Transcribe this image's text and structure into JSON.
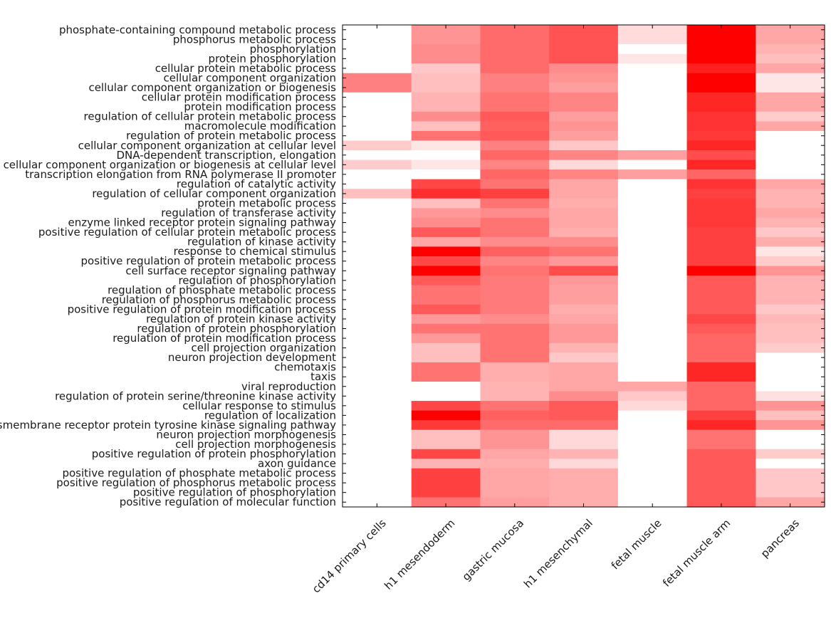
{
  "chart_data": {
    "type": "heatmap",
    "title": "",
    "xlabel": "",
    "ylabel": "",
    "color_scale": {
      "low": "#ffffff",
      "high": "#ff0000"
    },
    "grid": false,
    "columns": [
      "cd14 primary cells",
      "h1 mesendoderm",
      "gastric mucosa",
      "h1 mesenchymal",
      "fetal muscle",
      "fetal muscle arm",
      "pancreas"
    ],
    "rows": [
      "phosphate-containing compound metabolic process",
      "phosphorus metabolic process",
      "phosphorylation",
      "protein phosphorylation",
      "cellular protein metabolic process",
      "cellular component organization",
      "cellular component organization or biogenesis",
      "cellular protein modification process",
      "protein modification process",
      "regulation of cellular protein metabolic process",
      "macromolecule modification",
      "regulation of protein metabolic process",
      "cellular component organization at cellular level",
      "DNA-dependent transcription, elongation",
      "cellular component organization or biogenesis at cellular level",
      "transcription elongation from RNA polymerase II promoter",
      "regulation of catalytic activity",
      "regulation of cellular component organization",
      "protein metabolic process",
      "regulation of transferase activity",
      "enzyme linked receptor protein signaling pathway",
      "positive regulation of cellular protein metabolic process",
      "regulation of kinase activity",
      "response to chemical stimulus",
      "positive regulation of protein metabolic process",
      "cell surface receptor signaling pathway",
      "regulation of phosphorylation",
      "regulation of phosphate metabolic process",
      "regulation of phosphorus metabolic process",
      "positive regulation of protein modification process",
      "regulation of protein kinase activity",
      "regulation of protein phosphorylation",
      "regulation of protein modification process",
      "cell projection organization",
      "neuron projection development",
      "chemotaxis",
      "taxis",
      "viral reproduction",
      "regulation of protein serine/threonine kinase activity",
      "cellular response to stimulus",
      "regulation of localization",
      "transmembrane receptor protein tyrosine kinase signaling pathway",
      "neuron projection morphogenesis",
      "cell projection morphogenesis",
      "positive regulation of protein phosphorylation",
      "axon guidance",
      "positive regulation of phosphate metabolic process",
      "positive regulation of phosphorus metabolic process",
      "positive regulation of phosphorylation",
      "positive regulation of molecular function"
    ],
    "values": [
      [
        0,
        0.42,
        0.58,
        0.68,
        0.14,
        1.0,
        0.35
      ],
      [
        0,
        0.42,
        0.58,
        0.68,
        0.14,
        1.0,
        0.35
      ],
      [
        0,
        0.45,
        0.58,
        0.68,
        0,
        1.0,
        0.3
      ],
      [
        0,
        0.45,
        0.58,
        0.68,
        0.1,
        1.0,
        0.25
      ],
      [
        0,
        0.22,
        0.58,
        0.45,
        0,
        0.88,
        0.35
      ],
      [
        0.5,
        0.25,
        0.5,
        0.42,
        0,
        1.0,
        0.1
      ],
      [
        0.5,
        0.25,
        0.5,
        0.38,
        0,
        1.0,
        0.1
      ],
      [
        0,
        0.3,
        0.55,
        0.48,
        0,
        0.85,
        0.35
      ],
      [
        0,
        0.3,
        0.55,
        0.48,
        0,
        0.85,
        0.35
      ],
      [
        0,
        0.45,
        0.65,
        0.38,
        0,
        0.8,
        0.2
      ],
      [
        0,
        0.25,
        0.62,
        0.42,
        0,
        0.8,
        0.35
      ],
      [
        0,
        0.55,
        0.65,
        0.38,
        0,
        0.78,
        0
      ],
      [
        0.2,
        0.1,
        0.5,
        0.22,
        0,
        0.85,
        0
      ],
      [
        0,
        0,
        0.6,
        0.48,
        0.38,
        0.7,
        0
      ],
      [
        0.2,
        0.1,
        0.48,
        0.15,
        0,
        0.85,
        0
      ],
      [
        0,
        0,
        0.6,
        0.48,
        0.38,
        0.6,
        0
      ],
      [
        0,
        0.72,
        0.55,
        0.35,
        0,
        0.8,
        0.35
      ],
      [
        0.25,
        0.82,
        0.75,
        0.35,
        0,
        0.75,
        0.3
      ],
      [
        0,
        0.25,
        0.55,
        0.32,
        0,
        0.78,
        0.3
      ],
      [
        0,
        0.4,
        0.45,
        0.35,
        0,
        0.78,
        0.35
      ],
      [
        0,
        0.45,
        0.55,
        0.35,
        0,
        0.78,
        0.3
      ],
      [
        0,
        0.65,
        0.55,
        0.32,
        0,
        0.75,
        0.22
      ],
      [
        0,
        0.35,
        0.45,
        0.45,
        0,
        0.75,
        0.32
      ],
      [
        0,
        1.0,
        0.62,
        0.55,
        0,
        0.75,
        0.1
      ],
      [
        0,
        0.72,
        0.48,
        0.4,
        0,
        0.75,
        0.2
      ],
      [
        0,
        1.0,
        0.55,
        0.7,
        0,
        1.0,
        0.42
      ],
      [
        0,
        0.65,
        0.52,
        0.4,
        0,
        0.65,
        0.3
      ],
      [
        0,
        0.55,
        0.52,
        0.38,
        0,
        0.65,
        0.3
      ],
      [
        0,
        0.55,
        0.52,
        0.38,
        0,
        0.65,
        0.3
      ],
      [
        0,
        0.65,
        0.52,
        0.32,
        0,
        0.65,
        0.22
      ],
      [
        0,
        0.4,
        0.45,
        0.35,
        0,
        0.72,
        0.28
      ],
      [
        0,
        0.55,
        0.55,
        0.4,
        0,
        0.65,
        0.25
      ],
      [
        0,
        0.4,
        0.55,
        0.4,
        0,
        0.6,
        0.25
      ],
      [
        0,
        0.25,
        0.55,
        0.3,
        0,
        0.6,
        0.2
      ],
      [
        0,
        0.25,
        0.55,
        0.22,
        0,
        0.6,
        0
      ],
      [
        0,
        0.55,
        0.32,
        0.35,
        0,
        0.85,
        0
      ],
      [
        0,
        0.55,
        0.32,
        0.35,
        0,
        0.85,
        0
      ],
      [
        0,
        0,
        0.3,
        0.35,
        0.35,
        0.6,
        0
      ],
      [
        0,
        0,
        0.3,
        0.45,
        0.22,
        0.6,
        0.12
      ],
      [
        0,
        0.72,
        0.55,
        0.65,
        0.15,
        0.6,
        0.42
      ],
      [
        0,
        1.0,
        0.62,
        0.65,
        0,
        0.75,
        0.25
      ],
      [
        0,
        0.78,
        0.58,
        0.58,
        0,
        0.85,
        0.42
      ],
      [
        0,
        0.25,
        0.42,
        0.15,
        0,
        0.55,
        0
      ],
      [
        0,
        0.25,
        0.42,
        0.15,
        0,
        0.55,
        0
      ],
      [
        0,
        0.72,
        0.35,
        0.3,
        0,
        0.65,
        0.2
      ],
      [
        0,
        0.3,
        0.32,
        0.15,
        0,
        0.65,
        0
      ],
      [
        0,
        0.75,
        0.35,
        0.32,
        0,
        0.65,
        0.22
      ],
      [
        0,
        0.75,
        0.35,
        0.32,
        0,
        0.65,
        0.22
      ],
      [
        0,
        0.75,
        0.35,
        0.32,
        0,
        0.65,
        0.22
      ],
      [
        0,
        0.55,
        0.38,
        0.32,
        0,
        0.65,
        0.35
      ]
    ]
  }
}
